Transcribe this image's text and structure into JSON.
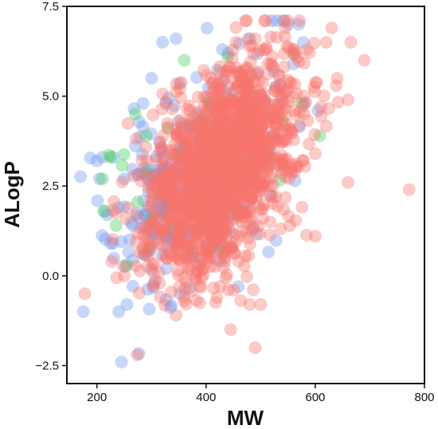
{
  "chart_data": {
    "type": "scatter",
    "title": "",
    "xlabel": "MW",
    "ylabel": "ALogP",
    "xlim": [
      145,
      800
    ],
    "ylim": [
      -3.0,
      7.5
    ],
    "xticks": [
      200,
      400,
      600,
      800
    ],
    "yticks": [
      -2.5,
      0.0,
      2.5,
      5.0,
      7.5
    ],
    "xtick_labels": [
      "200",
      "400",
      "600",
      "800"
    ],
    "ytick_labels": [
      "−2.5",
      "0.0",
      "2.5",
      "5.0",
      "7.5"
    ],
    "grid": false,
    "legend": "none",
    "point_alpha": 0.38,
    "series": [
      {
        "color": "#6e95ee",
        "generated": {
          "n": 330,
          "seed": 11,
          "x_mean": 375,
          "x_sd": 70,
          "y_center": 2.9,
          "y_slope_per_mw": 0.008,
          "y_sd": 1.35
        },
        "points": [
          [
            210,
            3.3
          ],
          [
            205,
            2.7
          ],
          [
            215,
            1.8
          ],
          [
            230,
            3.3
          ],
          [
            200,
            3.2
          ],
          [
            175,
            -1.0
          ],
          [
            240,
            -1.0
          ],
          [
            245,
            -2.4
          ],
          [
            255,
            -0.8
          ],
          [
            320,
            6.5
          ],
          [
            345,
            6.6
          ],
          [
            430,
            6.3
          ],
          [
            440,
            6.2
          ],
          [
            530,
            7.1
          ],
          [
            550,
            7.0
          ],
          [
            570,
            7.0
          ],
          [
            480,
            6.6
          ],
          [
            560,
            5.9
          ],
          [
            580,
            4.8
          ],
          [
            605,
            4.6
          ],
          [
            225,
            0.9
          ],
          [
            260,
            1.0
          ],
          [
            250,
            2.7
          ],
          [
            300,
            5.5
          ]
        ]
      },
      {
        "color": "#3fcf5a",
        "generated": {
          "n": 22,
          "seed": 7,
          "x_mean": 360,
          "x_sd": 90,
          "y_center": 2.9,
          "y_slope_per_mw": 0.006,
          "y_sd": 1.1
        },
        "points": [
          [
            210,
            2.7
          ],
          [
            212,
            1.8
          ],
          [
            225,
            3.3
          ],
          [
            235,
            1.4
          ],
          [
            255,
            0.3
          ],
          [
            270,
            4.5
          ],
          [
            300,
            1.6
          ],
          [
            290,
            3.9
          ],
          [
            330,
            4.1
          ],
          [
            360,
            6.0
          ],
          [
            365,
            3.4
          ],
          [
            370,
            2.9
          ],
          [
            395,
            4.4
          ],
          [
            405,
            4.8
          ],
          [
            440,
            6.1
          ],
          [
            460,
            1.7
          ],
          [
            490,
            4.7
          ],
          [
            520,
            3.1
          ],
          [
            540,
            4.3
          ],
          [
            560,
            6.2
          ],
          [
            575,
            4.8
          ],
          [
            395,
            3.1
          ]
        ]
      },
      {
        "color": "#f7736c",
        "generated": {
          "n": 1500,
          "seed": 3,
          "x_mean": 430,
          "x_sd": 70,
          "y_center": 3.0,
          "y_slope_per_mw": 0.0105,
          "y_sd": 1.3
        },
        "points": [
          [
            772,
            2.4
          ],
          [
            690,
            6.0
          ],
          [
            665,
            6.5
          ],
          [
            630,
            6.9
          ],
          [
            620,
            6.5
          ],
          [
            640,
            5.5
          ],
          [
            610,
            4.7
          ],
          [
            600,
            3.4
          ],
          [
            600,
            1.1
          ],
          [
            660,
            2.6
          ],
          [
            660,
            4.9
          ],
          [
            550,
            7.1
          ],
          [
            545,
            6.9
          ],
          [
            455,
            6.5
          ],
          [
            490,
            6.6
          ],
          [
            510,
            6.3
          ],
          [
            480,
            -0.8
          ],
          [
            445,
            -1.5
          ],
          [
            490,
            -2.0
          ],
          [
            345,
            -1.1
          ],
          [
            178,
            -0.5
          ],
          [
            250,
            0.0
          ],
          [
            315,
            -0.2
          ],
          [
            360,
            -0.7
          ],
          [
            420,
            -0.6
          ],
          [
            500,
            -0.8
          ]
        ]
      }
    ]
  }
}
